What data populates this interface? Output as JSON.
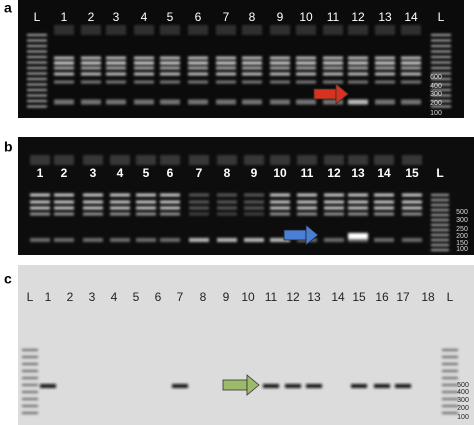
{
  "panels": [
    {
      "label": "a",
      "lanes": [
        "L",
        "1",
        "2",
        "3",
        "4",
        "5",
        "6",
        "7",
        "8",
        "9",
        "10",
        "11",
        "12",
        "13",
        "14",
        "L"
      ],
      "markers": [
        "600",
        "400",
        "300",
        "200",
        "100"
      ]
    },
    {
      "label": "b",
      "lanes": [
        "1",
        "2",
        "3",
        "4",
        "5",
        "6",
        "7",
        "8",
        "9",
        "10",
        "11",
        "12",
        "13",
        "14",
        "15",
        "L"
      ],
      "markers": [
        "500",
        "300",
        "250",
        "200",
        "150",
        "100"
      ]
    },
    {
      "label": "c",
      "lanes": [
        "L",
        "1",
        "2",
        "3",
        "4",
        "5",
        "6",
        "7",
        "8",
        "9",
        "10",
        "11",
        "12",
        "13",
        "14",
        "15",
        "16",
        "17",
        "18",
        "L"
      ],
      "markers": [
        "500",
        "400",
        "300",
        "200",
        "100"
      ]
    }
  ]
}
